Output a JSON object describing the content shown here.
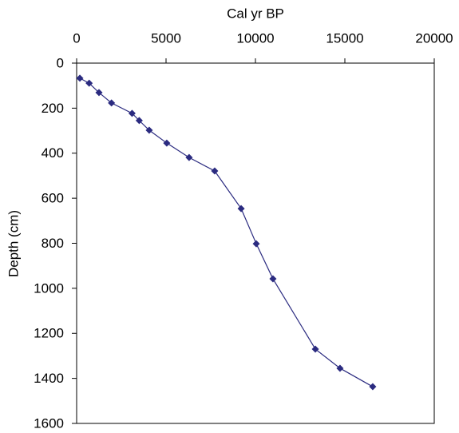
{
  "chart_data": {
    "type": "line",
    "x_label": "Cal yr BP",
    "y_label": "Depth (cm)",
    "x": [
      180,
      700,
      1250,
      1950,
      3100,
      3500,
      4060,
      5040,
      6290,
      7720,
      9200,
      10045,
      10980,
      13350,
      14730,
      16560
    ],
    "series": [
      {
        "color": "#2b2b80",
        "values": [
          67,
          89,
          131,
          177,
          223,
          255,
          298,
          355,
          419,
          479,
          646,
          802,
          958,
          1270,
          1355,
          1437
        ]
      }
    ],
    "xlim": [
      0,
      20000
    ],
    "xticks": [
      0,
      5000,
      10000,
      15000,
      20000
    ],
    "ylim": [
      0,
      1600
    ],
    "yticks": [
      0,
      200,
      400,
      600,
      800,
      1000,
      1200,
      1400,
      1600
    ],
    "y_reversed": true,
    "x_axis_position": "top",
    "marker": "diamond",
    "grid": false
  }
}
